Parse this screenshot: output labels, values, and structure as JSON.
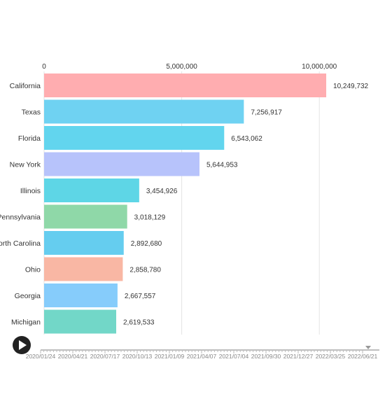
{
  "chart_data": {
    "type": "bar",
    "orientation": "horizontal",
    "categories": [
      "California",
      "Texas",
      "Florida",
      "New York",
      "Illinois",
      "Pennsylvania",
      "North Carolina",
      "Ohio",
      "Georgia",
      "Michigan"
    ],
    "values": [
      10249732,
      7256917,
      6543062,
      5644953,
      3454926,
      3018129,
      2892680,
      2858780,
      2667557,
      2619533
    ],
    "value_labels": [
      "10,249,732",
      "7,256,917",
      "6,543,062",
      "5,644,953",
      "3,454,926",
      "3,018,129",
      "2,892,680",
      "2,858,780",
      "2,667,557",
      "2,619,533"
    ],
    "colors": [
      "#ffadb0",
      "#6fd2f2",
      "#62d5ee",
      "#b7c3fb",
      "#5ed6e6",
      "#8fd8a8",
      "#65cdef",
      "#f9b7a4",
      "#86ccfb",
      "#72d7c8"
    ],
    "x_ticks": [
      0,
      5000000,
      10000000
    ],
    "x_tick_labels": [
      "0",
      "5,000,000",
      "10,000,000"
    ],
    "xlim": [
      0,
      10300000
    ],
    "grid": true,
    "title": "",
    "xlabel": "",
    "ylabel": ""
  },
  "timeline": {
    "labels": [
      "2020/01/24",
      "2020/04/21",
      "2020/07/17",
      "2020/10/13",
      "2021/01/09",
      "2021/04/07",
      "2021/07/04",
      "2021/09/30",
      "2021/12/27",
      "2022/03/25",
      "2022/06/21"
    ],
    "current": "2022/06/21",
    "progress": 1.0,
    "play_icon": "play-icon",
    "marker_icon": "triangle-down-icon"
  }
}
